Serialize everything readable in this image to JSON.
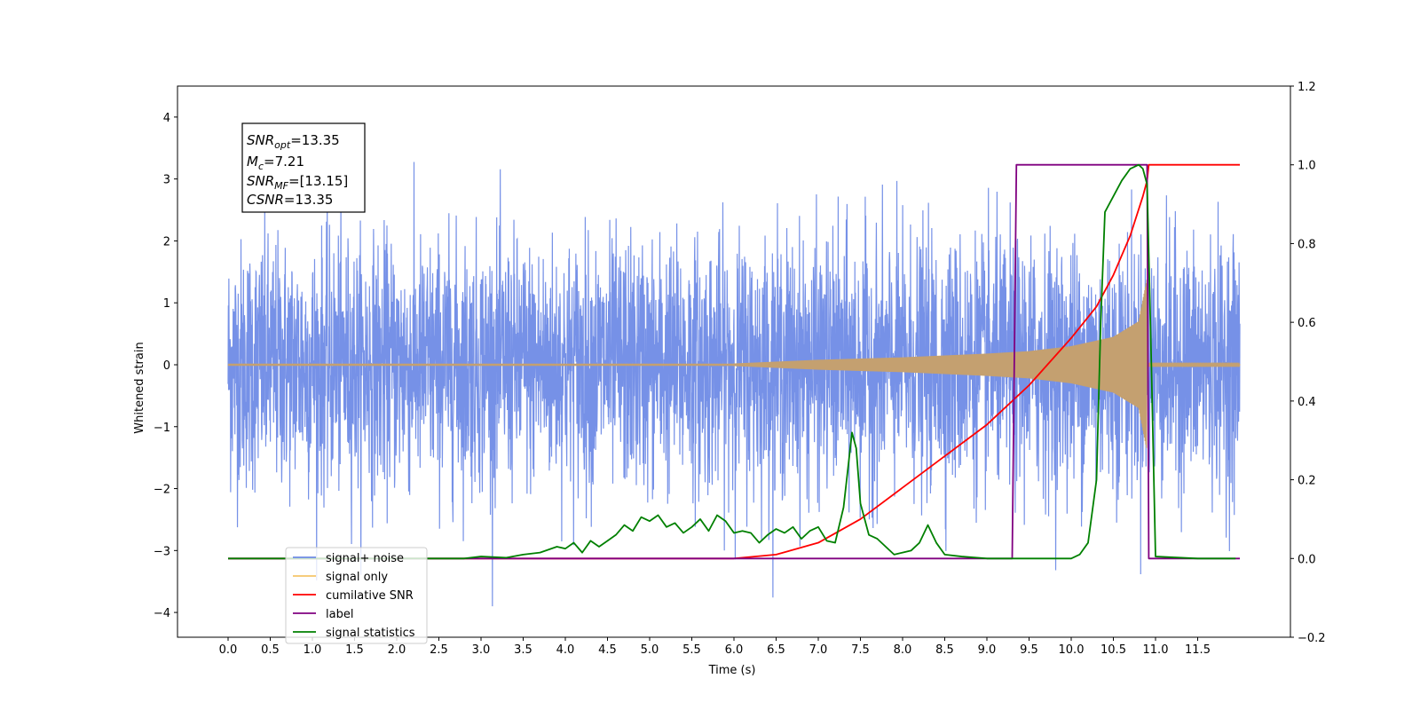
{
  "chart_data": {
    "type": "line",
    "xlabel": "Time (s)",
    "ylabel": "Whitened strain",
    "xlim": [
      -0.6,
      12.6
    ],
    "ylim": [
      -4.4,
      4.5
    ],
    "y2lim": [
      -0.2,
      1.2
    ],
    "x_ticks": [
      "0.0",
      "0.5",
      "1.0",
      "1.5",
      "2.0",
      "2.5",
      "3.0",
      "3.5",
      "4.0",
      "4.5",
      "5.0",
      "5.5",
      "6.0",
      "6.5",
      "7.0",
      "7.5",
      "8.0",
      "8.5",
      "9.0",
      "9.5",
      "10.0",
      "10.5",
      "11.0",
      "11.5"
    ],
    "y_ticks": [
      4,
      3,
      2,
      1,
      0,
      -1,
      -2,
      -3,
      -4
    ],
    "y_tick_labels": [
      "4",
      "3",
      "2",
      "1",
      "0",
      "−1",
      "−2",
      "−3",
      "−4"
    ],
    "y2_ticks": [
      1.2,
      1.0,
      0.8,
      0.6,
      0.4,
      0.2,
      0.0,
      -0.2
    ],
    "y2_tick_labels": [
      "1.2",
      "1.0",
      "0.8",
      "0.6",
      "0.4",
      "0.2",
      "0.0",
      "−0.2"
    ],
    "annotation": {
      "lines": [
        {
          "base": "SNR",
          "sub": "opt",
          "rest": "=13.35"
        },
        {
          "base": "M",
          "sub": "c",
          "rest": "=7.21"
        },
        {
          "base": "SNR",
          "sub": "MF",
          "rest": "=[13.15]"
        },
        {
          "base": "CSNR",
          "sub": "",
          "rest": "=13.35"
        }
      ]
    },
    "legend_position": "lower-left",
    "legend": [
      {
        "label": "signal+ noise",
        "color": "#6f8be6"
      },
      {
        "label": "signal only",
        "color": "#f5c46a"
      },
      {
        "label": "cumilative SNR",
        "color": "#ff0000"
      },
      {
        "label": "label",
        "color": "#800080"
      },
      {
        "label": "signal statistics",
        "color": "#008000"
      }
    ],
    "series": [
      {
        "name": "signal+ noise",
        "axis": "left",
        "color": "#6f8be6",
        "x_range": [
          0.0,
          12.0
        ],
        "amplitude_std": 1.0
      },
      {
        "name": "signal only",
        "axis": "left",
        "color": "#f5c46a",
        "x_range": [
          0.0,
          12.0
        ],
        "envelope": [
          [
            6.0,
            0.02
          ],
          [
            7.0,
            0.08
          ],
          [
            8.0,
            0.12
          ],
          [
            9.0,
            0.18
          ],
          [
            9.5,
            0.22
          ],
          [
            10.0,
            0.3
          ],
          [
            10.5,
            0.45
          ],
          [
            10.8,
            0.7
          ],
          [
            10.9,
            1.4
          ]
        ]
      },
      {
        "name": "cumilative SNR",
        "axis": "right",
        "x": [
          0.0,
          6.0,
          6.5,
          7.0,
          7.5,
          8.0,
          8.5,
          9.0,
          9.5,
          10.0,
          10.3,
          10.5,
          10.7,
          10.85,
          10.9,
          10.92,
          12.0
        ],
        "y": [
          0.0,
          0.0,
          0.01,
          0.04,
          0.1,
          0.18,
          0.26,
          0.34,
          0.44,
          0.56,
          0.64,
          0.72,
          0.82,
          0.92,
          0.96,
          1.0,
          1.0
        ]
      },
      {
        "name": "label",
        "axis": "right",
        "x": [
          0.0,
          9.3,
          9.35,
          10.9,
          10.92,
          11.0,
          12.0
        ],
        "y": [
          0.0,
          0.0,
          1.0,
          1.0,
          0.0,
          0.0,
          0.0
        ]
      },
      {
        "name": "signal statistics",
        "axis": "right",
        "x": [
          0.0,
          2.8,
          3.0,
          3.3,
          3.5,
          3.7,
          3.9,
          4.0,
          4.1,
          4.2,
          4.3,
          4.4,
          4.5,
          4.6,
          4.7,
          4.8,
          4.9,
          5.0,
          5.1,
          5.2,
          5.3,
          5.4,
          5.5,
          5.6,
          5.7,
          5.8,
          5.9,
          6.0,
          6.1,
          6.2,
          6.3,
          6.4,
          6.5,
          6.6,
          6.7,
          6.8,
          6.9,
          7.0,
          7.1,
          7.2,
          7.3,
          7.4,
          7.45,
          7.5,
          7.6,
          7.7,
          7.8,
          7.9,
          8.0,
          8.1,
          8.2,
          8.3,
          8.4,
          8.5,
          8.7,
          9.0,
          9.5,
          10.0,
          10.1,
          10.2,
          10.3,
          10.35,
          10.4,
          10.5,
          10.6,
          10.7,
          10.8,
          10.85,
          10.9,
          10.95,
          11.0,
          11.5,
          11.95
        ],
        "y": [
          0.0,
          0.0,
          0.005,
          0.002,
          0.01,
          0.015,
          0.03,
          0.025,
          0.04,
          0.015,
          0.045,
          0.03,
          0.045,
          0.06,
          0.085,
          0.07,
          0.105,
          0.095,
          0.11,
          0.08,
          0.09,
          0.065,
          0.08,
          0.1,
          0.07,
          0.11,
          0.095,
          0.065,
          0.07,
          0.065,
          0.04,
          0.06,
          0.075,
          0.065,
          0.08,
          0.05,
          0.07,
          0.08,
          0.045,
          0.04,
          0.13,
          0.32,
          0.28,
          0.14,
          0.06,
          0.05,
          0.03,
          0.01,
          0.015,
          0.02,
          0.04,
          0.085,
          0.04,
          0.01,
          0.005,
          0.0,
          0.0,
          0.0,
          0.01,
          0.04,
          0.2,
          0.6,
          0.88,
          0.92,
          0.96,
          0.99,
          1.0,
          0.99,
          0.95,
          0.5,
          0.005,
          0.0,
          0.0
        ]
      }
    ]
  }
}
